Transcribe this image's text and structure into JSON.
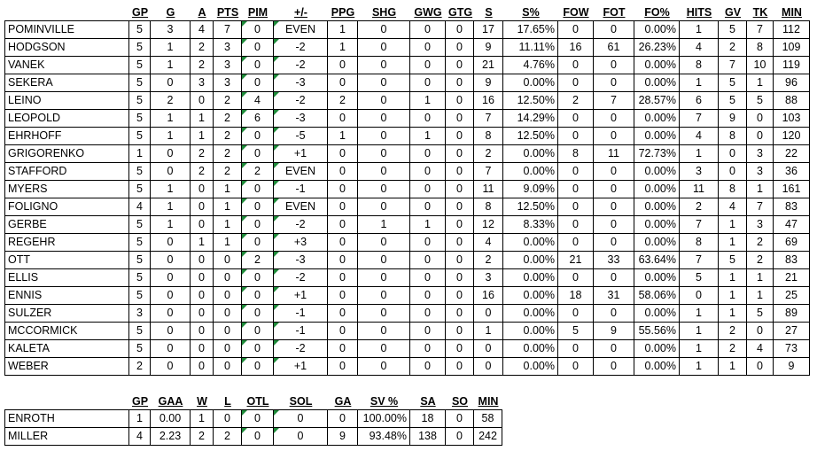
{
  "skaters": {
    "headers": [
      "GP",
      "G",
      "A",
      "PTS",
      "PIM",
      "+/-",
      "PPG",
      "SHG",
      "GWG",
      "GTG",
      "S",
      "S%",
      "FOW",
      "FOT",
      "FO%",
      "HITS",
      "GV",
      "TK",
      "MIN"
    ],
    "rows": [
      [
        "POMINVILLE",
        "5",
        "3",
        "4",
        "7",
        "0",
        "EVEN",
        "1",
        "0",
        "0",
        "0",
        "17",
        "17.65%",
        "0",
        "0",
        "0.00%",
        "1",
        "5",
        "7",
        "112"
      ],
      [
        "HODGSON",
        "5",
        "1",
        "2",
        "3",
        "0",
        "-2",
        "1",
        "0",
        "0",
        "0",
        "9",
        "11.11%",
        "16",
        "61",
        "26.23%",
        "4",
        "2",
        "8",
        "109"
      ],
      [
        "VANEK",
        "5",
        "1",
        "2",
        "3",
        "0",
        "-2",
        "0",
        "0",
        "0",
        "0",
        "21",
        "4.76%",
        "0",
        "0",
        "0.00%",
        "8",
        "7",
        "10",
        "119"
      ],
      [
        "SEKERA",
        "5",
        "0",
        "3",
        "3",
        "0",
        "-3",
        "0",
        "0",
        "0",
        "0",
        "9",
        "0.00%",
        "0",
        "0",
        "0.00%",
        "1",
        "5",
        "1",
        "96"
      ],
      [
        "LEINO",
        "5",
        "2",
        "0",
        "2",
        "4",
        "-2",
        "2",
        "0",
        "1",
        "0",
        "16",
        "12.50%",
        "2",
        "7",
        "28.57%",
        "6",
        "5",
        "5",
        "88"
      ],
      [
        "LEOPOLD",
        "5",
        "1",
        "1",
        "2",
        "6",
        "-3",
        "0",
        "0",
        "0",
        "0",
        "7",
        "14.29%",
        "0",
        "0",
        "0.00%",
        "7",
        "9",
        "0",
        "103"
      ],
      [
        "EHRHOFF",
        "5",
        "1",
        "1",
        "2",
        "0",
        "-5",
        "1",
        "0",
        "1",
        "0",
        "8",
        "12.50%",
        "0",
        "0",
        "0.00%",
        "4",
        "8",
        "0",
        "120"
      ],
      [
        "GRIGORENKO",
        "1",
        "0",
        "2",
        "2",
        "0",
        "+1",
        "0",
        "0",
        "0",
        "0",
        "2",
        "0.00%",
        "8",
        "11",
        "72.73%",
        "1",
        "0",
        "3",
        "22"
      ],
      [
        "STAFFORD",
        "5",
        "0",
        "2",
        "2",
        "2",
        "EVEN",
        "0",
        "0",
        "0",
        "0",
        "7",
        "0.00%",
        "0",
        "0",
        "0.00%",
        "3",
        "0",
        "3",
        "36"
      ],
      [
        "MYERS",
        "5",
        "1",
        "0",
        "1",
        "0",
        "-1",
        "0",
        "0",
        "0",
        "0",
        "11",
        "9.09%",
        "0",
        "0",
        "0.00%",
        "11",
        "8",
        "1",
        "161"
      ],
      [
        "FOLIGNO",
        "4",
        "1",
        "0",
        "1",
        "0",
        "EVEN",
        "0",
        "0",
        "0",
        "0",
        "8",
        "12.50%",
        "0",
        "0",
        "0.00%",
        "2",
        "4",
        "7",
        "83"
      ],
      [
        "GERBE",
        "5",
        "1",
        "0",
        "1",
        "0",
        "-2",
        "0",
        "1",
        "1",
        "0",
        "12",
        "8.33%",
        "0",
        "0",
        "0.00%",
        "7",
        "1",
        "3",
        "47"
      ],
      [
        "REGEHR",
        "5",
        "0",
        "1",
        "1",
        "0",
        "+3",
        "0",
        "0",
        "0",
        "0",
        "4",
        "0.00%",
        "0",
        "0",
        "0.00%",
        "8",
        "1",
        "2",
        "69"
      ],
      [
        "OTT",
        "5",
        "0",
        "0",
        "0",
        "2",
        "-3",
        "0",
        "0",
        "0",
        "0",
        "2",
        "0.00%",
        "21",
        "33",
        "63.64%",
        "7",
        "5",
        "2",
        "83"
      ],
      [
        "ELLIS",
        "5",
        "0",
        "0",
        "0",
        "0",
        "-2",
        "0",
        "0",
        "0",
        "0",
        "3",
        "0.00%",
        "0",
        "0",
        "0.00%",
        "5",
        "1",
        "1",
        "21"
      ],
      [
        "ENNIS",
        "5",
        "0",
        "0",
        "0",
        "0",
        "+1",
        "0",
        "0",
        "0",
        "0",
        "16",
        "0.00%",
        "18",
        "31",
        "58.06%",
        "0",
        "1",
        "1",
        "25"
      ],
      [
        "SULZER",
        "3",
        "0",
        "0",
        "0",
        "0",
        "-1",
        "0",
        "0",
        "0",
        "0",
        "0",
        "0.00%",
        "0",
        "0",
        "0.00%",
        "1",
        "1",
        "5",
        "89"
      ],
      [
        "MCCORMICK",
        "5",
        "0",
        "0",
        "0",
        "0",
        "-1",
        "0",
        "0",
        "0",
        "0",
        "1",
        "0.00%",
        "5",
        "9",
        "55.56%",
        "1",
        "2",
        "0",
        "27"
      ],
      [
        "KALETA",
        "5",
        "0",
        "0",
        "0",
        "0",
        "-2",
        "0",
        "0",
        "0",
        "0",
        "0",
        "0.00%",
        "0",
        "0",
        "0.00%",
        "1",
        "2",
        "4",
        "73"
      ],
      [
        "WEBER",
        "2",
        "0",
        "0",
        "0",
        "0",
        "+1",
        "0",
        "0",
        "0",
        "0",
        "0",
        "0.00%",
        "0",
        "0",
        "0.00%",
        "1",
        "1",
        "0",
        "9"
      ]
    ]
  },
  "goalies": {
    "headers": [
      "GP",
      "GAA",
      "W",
      "L",
      "OTL",
      "SOL",
      "GA",
      "SV %",
      "SA",
      "SO",
      "MIN"
    ],
    "rows": [
      [
        "ENROTH",
        "1",
        "0.00",
        "1",
        "0",
        "0",
        "0",
        "0",
        "100.00%",
        "18",
        "0",
        "58"
      ],
      [
        "MILLER",
        "4",
        "2.23",
        "2",
        "2",
        "0",
        "0",
        "9",
        "93.48%",
        "138",
        "0",
        "242"
      ]
    ]
  }
}
